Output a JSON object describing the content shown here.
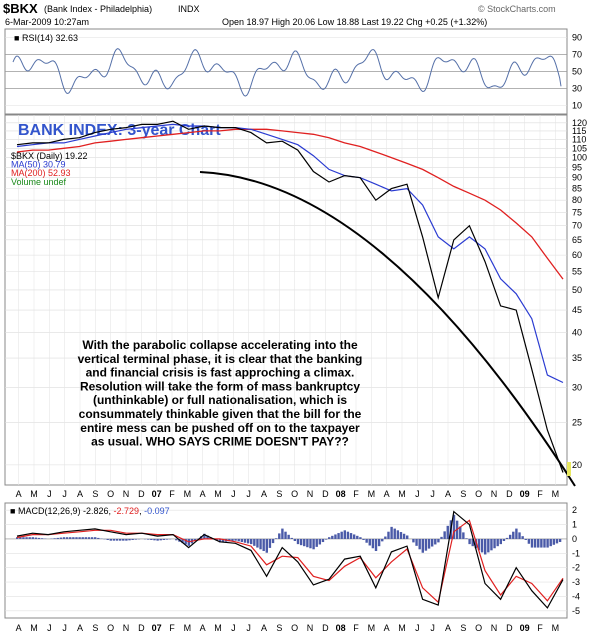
{
  "header": {
    "symbol": "$BKX",
    "name": "(Bank Index - Philadelphia)",
    "exchange": "INDX",
    "datetime": "6-Mar-2009 10:27am",
    "quote": "Open 18.97  High 20.06  Low 18.88  Last 19.22  Chg +0.25 (+1.32%)",
    "source": "© StockCharts.com"
  },
  "rsi_panel": {
    "label": "RSI(14) 32.63",
    "ticks": [
      "90",
      "70",
      "50",
      "30",
      "10"
    ]
  },
  "price_panel": {
    "chart_title": "BANK INDEX: 3-year Chart",
    "legend": [
      {
        "text": "$BKX (Daily) 19.22",
        "color": "#000000"
      },
      {
        "text": "MA(50) 30.79",
        "color": "#2a3bd1"
      },
      {
        "text": "MA(200) 52.93",
        "color": "#e02020"
      },
      {
        "text": "Volume undef",
        "color": "#1a8a1a"
      }
    ],
    "ticks": [
      "120",
      "115",
      "110",
      "105",
      "100",
      "95",
      "90",
      "85",
      "80",
      "75",
      "70",
      "65",
      "60",
      "55",
      "50",
      "45",
      "40",
      "35",
      "30",
      "25",
      "20"
    ],
    "annotation": [
      "With the parabolic collapse accelerating into the",
      "vertical terminal phase, it is clear that the banking",
      "and financial crisis is fast approching a climax.",
      "Resolution will take the form of mass bankruptcy",
      "(unthinkable) or full nationalisation, which is",
      "consummately thinkable given that the bill for the",
      "entire mess can be pushed off on to the taxpayer",
      "as usual. WHO SAYS CRIME DOESN'T PAY??"
    ]
  },
  "macd_panel": {
    "label_prefix": "MACD(12,26,9)",
    "macd": "-2.826",
    "signal": "-2.729",
    "hist": "-0.097",
    "ticks": [
      "2",
      "1",
      "0",
      "-1",
      "-2",
      "-3",
      "-4",
      "-5"
    ]
  },
  "x_axis": {
    "labels": [
      "A",
      "M",
      "J",
      "J",
      "A",
      "S",
      "O",
      "N",
      "D",
      "07",
      "F",
      "M",
      "A",
      "M",
      "J",
      "J",
      "A",
      "S",
      "O",
      "N",
      "D",
      "08",
      "F",
      "M",
      "A",
      "M",
      "J",
      "J",
      "A",
      "S",
      "O",
      "N",
      "D",
      "09",
      "F",
      "M"
    ]
  },
  "chart_data": {
    "type": "line",
    "title": "BANK INDEX: 3-year Chart",
    "log_scale": true,
    "x": [
      "2006-04",
      "2006-05",
      "2006-06",
      "2006-07",
      "2006-08",
      "2006-09",
      "2006-10",
      "2006-11",
      "2006-12",
      "2007-01",
      "2007-02",
      "2007-03",
      "2007-04",
      "2007-05",
      "2007-06",
      "2007-07",
      "2007-08",
      "2007-09",
      "2007-10",
      "2007-11",
      "2007-12",
      "2008-01",
      "2008-02",
      "2008-03",
      "2008-04",
      "2008-05",
      "2008-06",
      "2008-07",
      "2008-08",
      "2008-09",
      "2008-10",
      "2008-11",
      "2008-12",
      "2009-01",
      "2009-02",
      "2009-03"
    ],
    "ylim": [
      18,
      125
    ],
    "series": [
      {
        "name": "$BKX (Daily)",
        "values": [
          107,
          108,
          108,
          110,
          111,
          114,
          116,
          117,
          119,
          119,
          121,
          116,
          118,
          117,
          117,
          114,
          108,
          109,
          104,
          93,
          88,
          91,
          90,
          80,
          85,
          87,
          66,
          48,
          65,
          70,
          58,
          46,
          45,
          33,
          24,
          19.22
        ]
      },
      {
        "name": "MA(50)",
        "values": [
          106,
          107,
          108,
          108,
          110,
          112,
          114,
          116,
          117,
          118,
          119,
          118,
          118,
          117,
          117,
          116,
          113,
          110,
          107,
          101,
          94,
          91,
          90,
          87,
          84,
          85,
          78,
          66,
          62,
          66,
          62,
          53,
          49,
          43,
          32,
          30.79
        ]
      },
      {
        "name": "MA(200)",
        "values": [
          103,
          104,
          104,
          105,
          106,
          108,
          109,
          110,
          111,
          112,
          113,
          114,
          115,
          115,
          116,
          116,
          116,
          115,
          114,
          113,
          111,
          108,
          106,
          103,
          100,
          97,
          94,
          90,
          86,
          83,
          80,
          76,
          71,
          66,
          59,
          52.93
        ]
      }
    ],
    "rsi": {
      "name": "RSI(14)",
      "ylim": [
        0,
        100
      ],
      "reference_lines": [
        30,
        50,
        70
      ],
      "last": 32.63
    },
    "macd": {
      "name": "MACD(12,26,9)",
      "ylim": [
        -5.5,
        2.5
      ],
      "macd_values": [
        0.2,
        0.4,
        0.3,
        0.5,
        0.6,
        0.7,
        0.5,
        0.3,
        0.4,
        0.2,
        0.3,
        -0.6,
        0.3,
        -0.2,
        -0.3,
        -0.8,
        -2.6,
        -0.6,
        -1.6,
        -3.2,
        -2.8,
        -1.4,
        -1.2,
        -3.4,
        -0.9,
        -0.5,
        -4.2,
        -4.6,
        1.9,
        1.0,
        -3.1,
        -4.2,
        -2.0,
        -3.6,
        -4.8,
        -2.826
      ],
      "signal_values": [
        0.1,
        0.3,
        0.3,
        0.4,
        0.5,
        0.6,
        0.6,
        0.4,
        0.4,
        0.3,
        0.3,
        -0.2,
        0.0,
        0.0,
        -0.2,
        -0.5,
        -1.8,
        -1.2,
        -1.3,
        -2.6,
        -2.9,
        -1.9,
        -1.3,
        -2.7,
        -1.6,
        -0.7,
        -3.4,
        -4.4,
        0.5,
        1.3,
        -2.2,
        -3.9,
        -2.6,
        -3.1,
        -4.3,
        -2.729
      ],
      "last_hist": -0.097
    },
    "annotations": [
      "parabolic trendline drawn beneath price"
    ]
  }
}
